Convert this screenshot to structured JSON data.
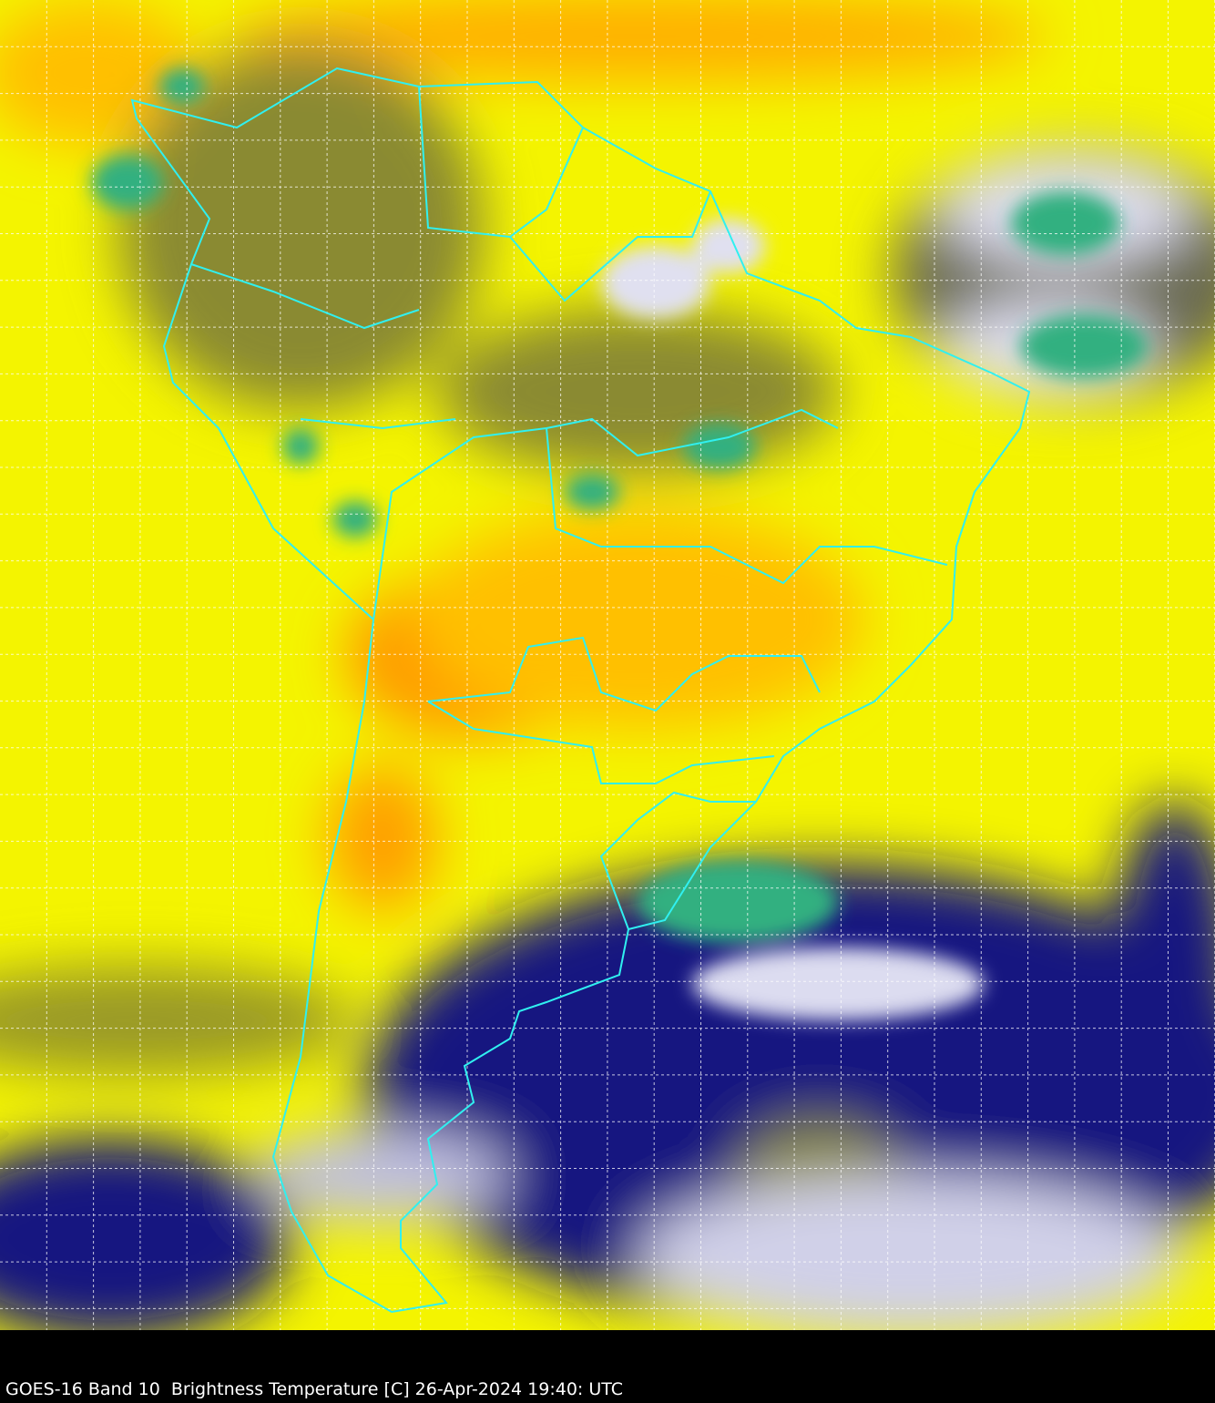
{
  "caption": "GOES-16 Band 10  Brightness Temperature [C] 26-Apr-2024 19:40: UTC",
  "colors": {
    "background": "#000000",
    "warm_dry": "#ffa000",
    "dry": "#ffff00",
    "moist": "#a0a028",
    "cold": "#101080",
    "cloud": "#e8e8f4",
    "very_cold": "#30b080",
    "borders": "#30f0f0",
    "grid": "#ffffff"
  }
}
